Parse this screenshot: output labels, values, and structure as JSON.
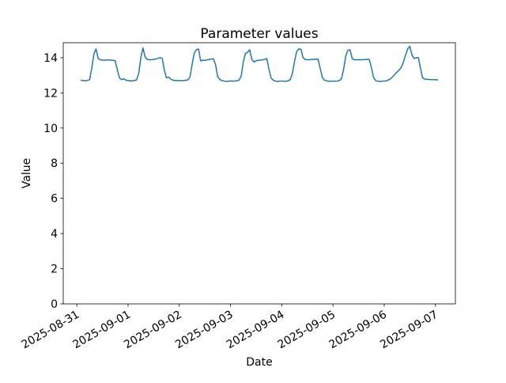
{
  "chart_data": {
    "type": "line",
    "title": "Parameter values",
    "xlabel": "Date",
    "ylabel": "Value",
    "background_color": "#ffffff",
    "line_color": "#1f77b4",
    "axis_color": "#000000",
    "grid": false,
    "legend": false,
    "ylim": [
      0,
      14.85
    ],
    "y_ticks": [
      0,
      2,
      4,
      6,
      8,
      10,
      12,
      14
    ],
    "x_margin_fraction": 0.05,
    "x_ticks": {
      "hours": [
        0,
        24,
        48,
        72,
        96,
        120,
        144,
        168
      ],
      "labels": [
        "2025-08-31",
        "2025-09-01",
        "2025-09-02",
        "2025-09-03",
        "2025-09-04",
        "2025-09-05",
        "2025-09-06",
        "2025-09-07"
      ]
    },
    "series": [
      {
        "name": "parameter-values",
        "color": "#1f77b4",
        "x_start_hour": 2,
        "x_step_hours": 1,
        "x_epoch": "2025-08-31 00:00",
        "values": [
          12.72,
          12.7,
          12.68,
          12.71,
          12.75,
          13.4,
          14.2,
          14.5,
          13.95,
          13.88,
          13.86,
          13.86,
          13.87,
          13.87,
          13.86,
          13.85,
          13.82,
          13.3,
          12.85,
          12.75,
          12.8,
          12.72,
          12.7,
          12.68,
          12.68,
          12.7,
          12.74,
          13.1,
          14.0,
          14.55,
          14.05,
          13.9,
          13.88,
          13.88,
          13.9,
          13.92,
          13.96,
          14.0,
          13.97,
          13.3,
          12.85,
          12.9,
          12.78,
          12.72,
          12.7,
          12.7,
          12.7,
          12.69,
          12.7,
          12.71,
          12.74,
          12.9,
          13.6,
          14.25,
          14.45,
          14.5,
          13.82,
          13.86,
          13.84,
          13.88,
          13.9,
          13.92,
          13.94,
          13.6,
          12.92,
          12.76,
          12.7,
          12.67,
          12.65,
          12.66,
          12.68,
          12.67,
          12.67,
          12.69,
          12.72,
          12.95,
          13.75,
          14.25,
          14.3,
          14.45,
          13.9,
          13.75,
          13.83,
          13.85,
          13.86,
          13.88,
          13.9,
          13.95,
          13.35,
          12.85,
          12.72,
          12.67,
          12.65,
          12.66,
          12.67,
          12.66,
          12.66,
          12.68,
          12.76,
          13.1,
          13.8,
          14.35,
          14.5,
          14.48,
          14.0,
          13.9,
          13.88,
          13.88,
          13.9,
          13.9,
          13.91,
          13.92,
          13.4,
          12.88,
          12.72,
          12.68,
          12.66,
          12.66,
          12.67,
          12.66,
          12.67,
          12.7,
          12.82,
          13.35,
          14.1,
          14.42,
          14.45,
          13.95,
          13.88,
          13.88,
          13.88,
          13.88,
          13.89,
          13.9,
          13.9,
          13.9,
          13.45,
          12.88,
          12.7,
          12.66,
          12.65,
          12.66,
          12.67,
          12.68,
          12.74,
          12.8,
          12.92,
          13.05,
          13.18,
          13.3,
          13.45,
          13.75,
          14.15,
          14.5,
          14.65,
          14.15,
          13.95,
          14.0,
          14.0,
          13.4,
          12.85,
          12.78,
          12.77,
          12.76,
          12.75,
          12.75,
          12.74,
          12.74
        ]
      }
    ]
  }
}
